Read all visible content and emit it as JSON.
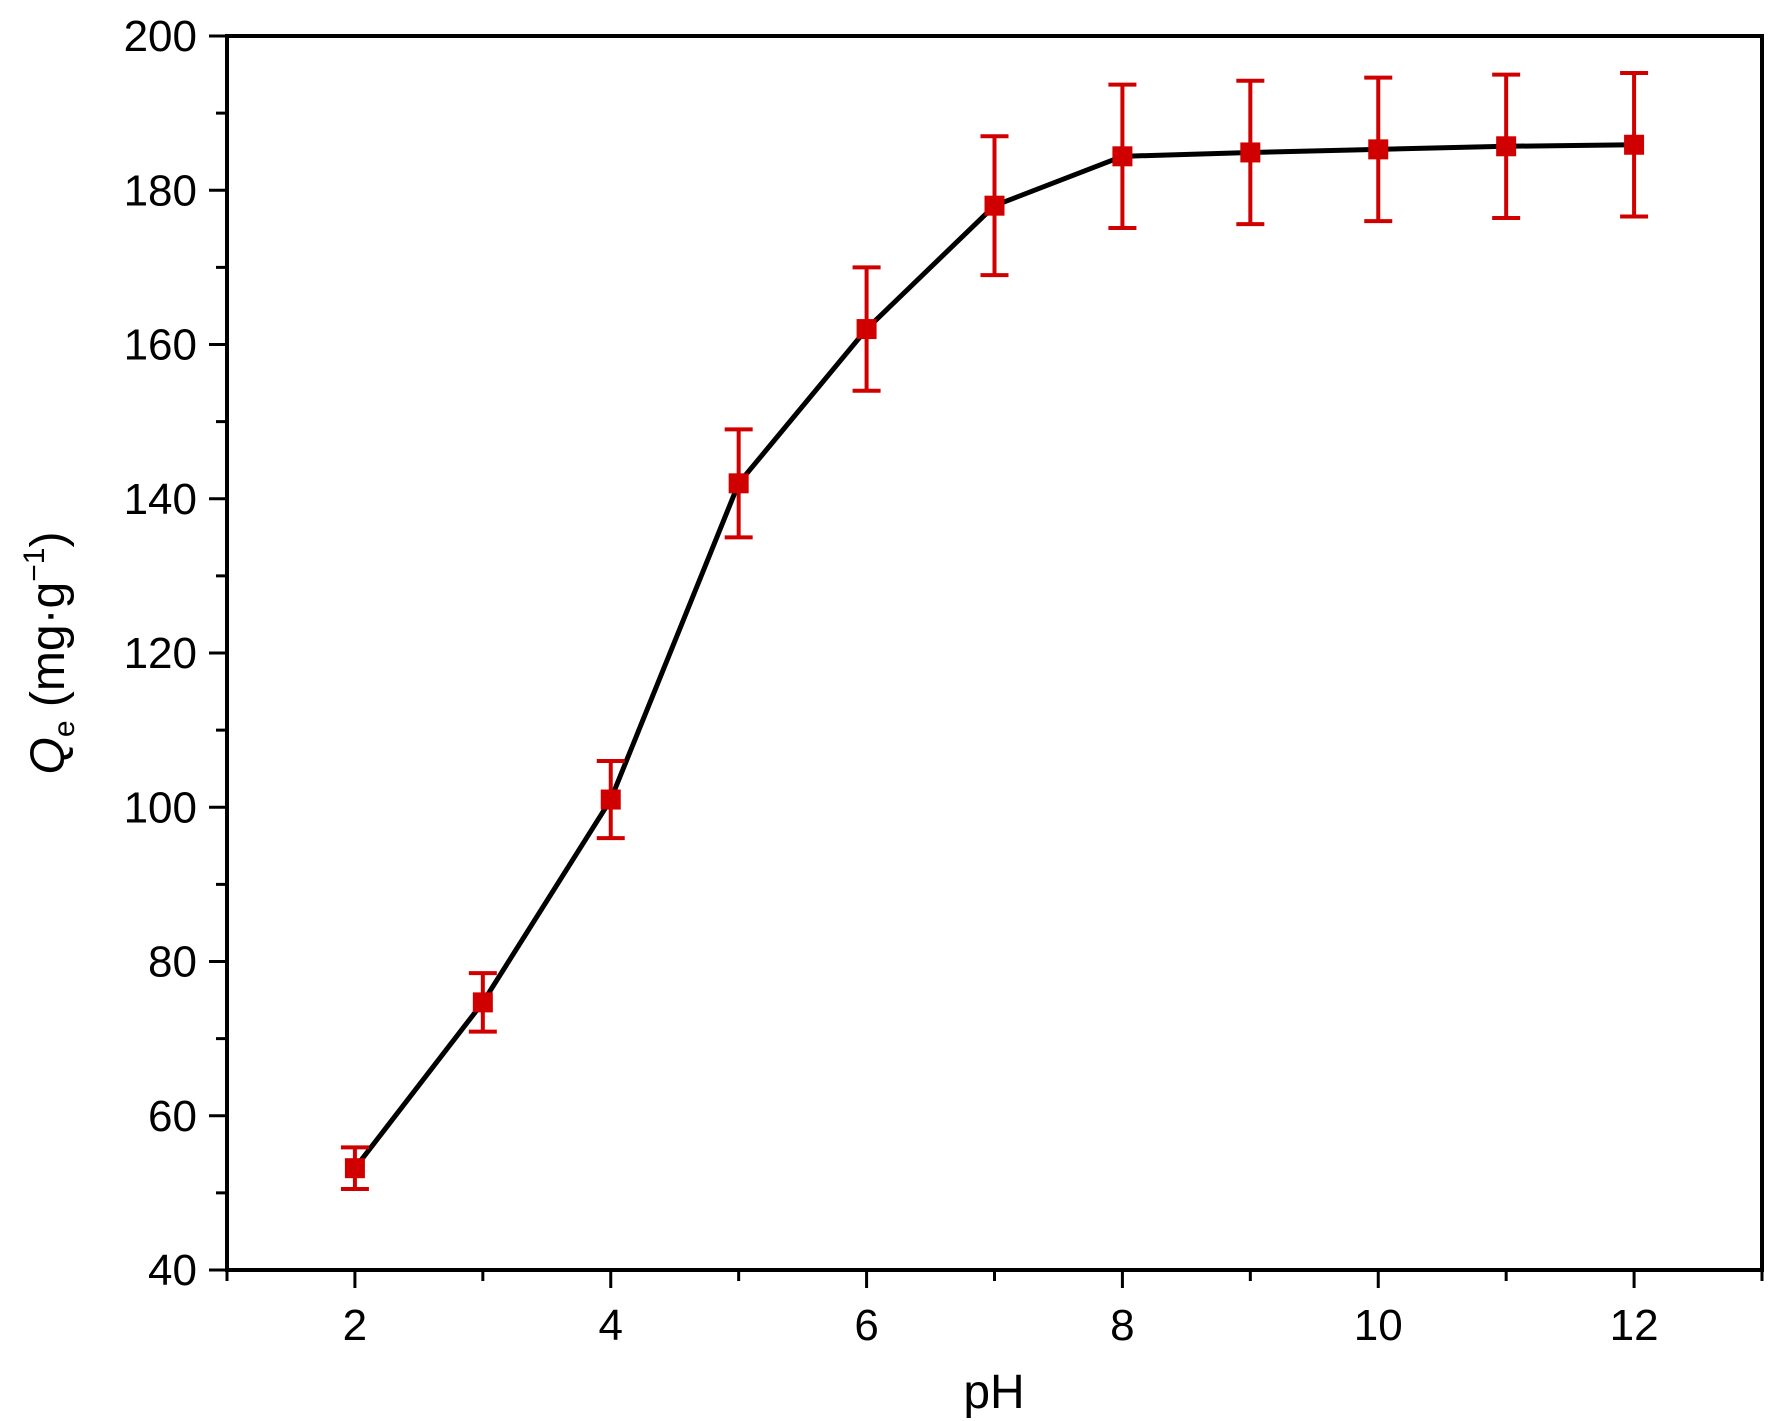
{
  "chart_data": {
    "type": "line",
    "title": "",
    "xlabel": "pH",
    "ylabel": {
      "symbol": "Q",
      "subscript": "e",
      "unit_open": " (mg·g",
      "unit_sup": "−1",
      "unit_close": ")"
    },
    "xlim": [
      1,
      13
    ],
    "ylim": [
      40,
      200
    ],
    "xticks": [
      "2",
      "4",
      "6",
      "8",
      "10",
      "12"
    ],
    "yticks": [
      "40",
      "60",
      "80",
      "100",
      "120",
      "140",
      "160",
      "180",
      "200"
    ],
    "grid": false,
    "legend": "none",
    "colors": {
      "line": "#000000",
      "marker": "#d00000",
      "error_bar": "#d00000",
      "axis": "#000000"
    },
    "series": [
      {
        "x": [
          2,
          3,
          4,
          5,
          6,
          7,
          8,
          9,
          10,
          11,
          12
        ],
        "y": [
          53.2,
          74.7,
          101.0,
          142.0,
          162.0,
          178.0,
          184.4,
          184.9,
          185.3,
          185.7,
          185.9
        ],
        "error": [
          2.7,
          3.8,
          5.0,
          7.0,
          8.0,
          9.0,
          9.3,
          9.3,
          9.3,
          9.3,
          9.3
        ]
      }
    ]
  }
}
